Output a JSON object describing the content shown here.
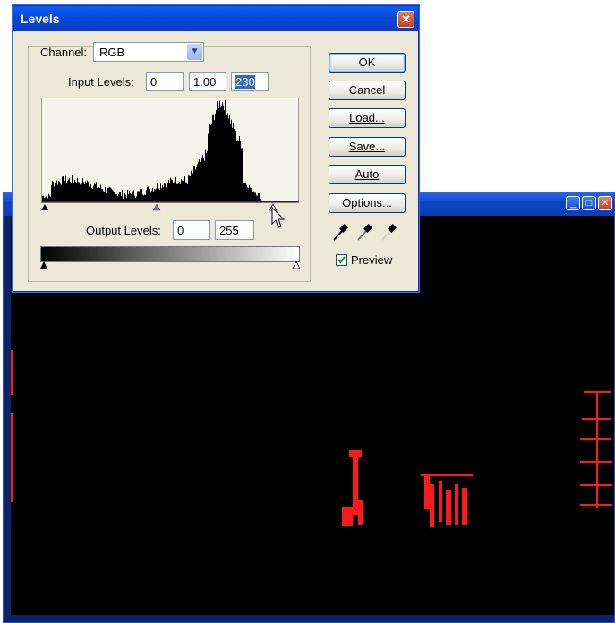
{
  "dialog": {
    "title": "Levels",
    "channel_label": "Channel:",
    "channel_value": "RGB",
    "input_levels_label": "Input Levels:",
    "input_black": "0",
    "input_gamma": "1.00",
    "input_white": "230",
    "output_levels_label": "Output Levels:",
    "output_black": "0",
    "output_white": "255",
    "buttons": {
      "ok": "OK",
      "cancel": "Cancel",
      "load": "Load...",
      "save": "Save...",
      "auto": "Auto",
      "options": "Options..."
    },
    "preview_label": "Preview",
    "preview_checked": true
  },
  "colors": {
    "canvas": "#000000",
    "highlight": "#ff1a1a",
    "selection": "#316ac5"
  }
}
